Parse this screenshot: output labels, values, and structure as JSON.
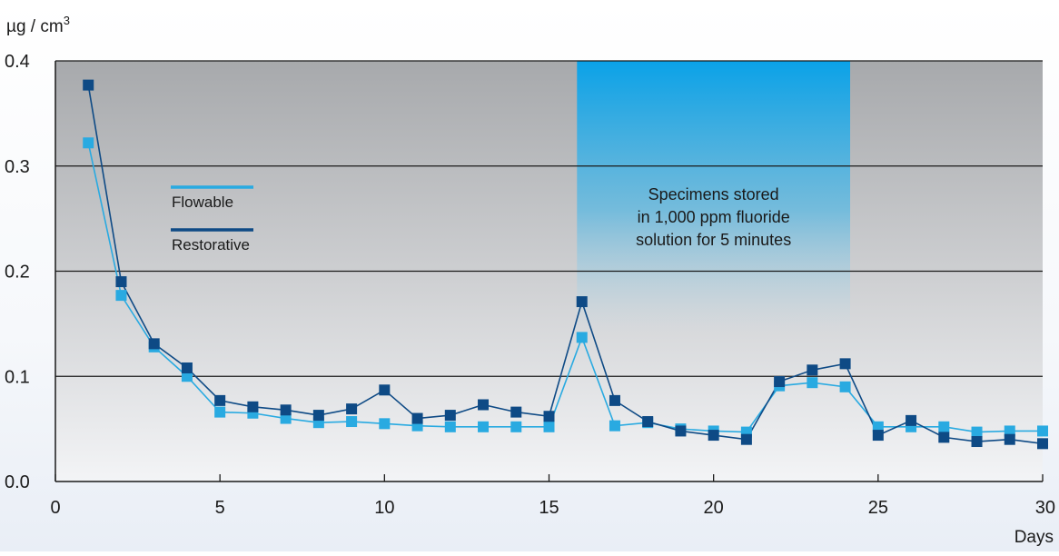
{
  "chart_data": {
    "type": "line",
    "ylabel": "µg / cm³",
    "xlabel": "Days",
    "xlim": [
      0,
      30
    ],
    "ylim": [
      0,
      0.4
    ],
    "xticks": [
      0,
      5,
      10,
      15,
      20,
      25,
      30
    ],
    "xtick_labels": [
      "0",
      "5",
      "10",
      "15",
      "20",
      "25",
      "30"
    ],
    "yticks": [
      0.0,
      0.1,
      0.2,
      0.3,
      0.4
    ],
    "ytick_labels": [
      "0.0",
      "0.1",
      "0.2",
      "0.3",
      "0.4"
    ],
    "grid": "horizontal",
    "legend_placement": "upper-left inside plot",
    "x": [
      1,
      2,
      3,
      4,
      5,
      6,
      7,
      8,
      9,
      10,
      11,
      12,
      13,
      14,
      15,
      16,
      17,
      18,
      19,
      20,
      21,
      22,
      23,
      24,
      25,
      26,
      27,
      28,
      29,
      30
    ],
    "series": [
      {
        "name": "Flowable",
        "color": "#29aae1",
        "marker": "square",
        "values": [
          0.322,
          0.177,
          0.128,
          0.1,
          0.066,
          0.065,
          0.06,
          0.056,
          0.057,
          0.055,
          0.053,
          0.052,
          0.052,
          0.052,
          0.052,
          0.137,
          0.053,
          0.056,
          0.05,
          0.048,
          0.047,
          0.091,
          0.094,
          0.09,
          0.052,
          0.052,
          0.052,
          0.047,
          0.048,
          0.048
        ]
      },
      {
        "name": "Restorative",
        "color": "#0e4a85",
        "marker": "square",
        "values": [
          0.377,
          0.19,
          0.131,
          0.108,
          0.077,
          0.071,
          0.068,
          0.063,
          0.069,
          0.087,
          0.06,
          0.063,
          0.073,
          0.066,
          0.062,
          0.171,
          0.077,
          0.057,
          0.048,
          0.044,
          0.04,
          0.095,
          0.106,
          0.112,
          0.044,
          0.058,
          0.042,
          0.038,
          0.04,
          0.036
        ]
      }
    ],
    "annotation": {
      "x_range": [
        15.85,
        24.15
      ],
      "lines": [
        "Specimens stored",
        "in 1,000 ppm fluoride",
        "solution for 5 minutes"
      ],
      "color": "#0aa2e8"
    }
  }
}
